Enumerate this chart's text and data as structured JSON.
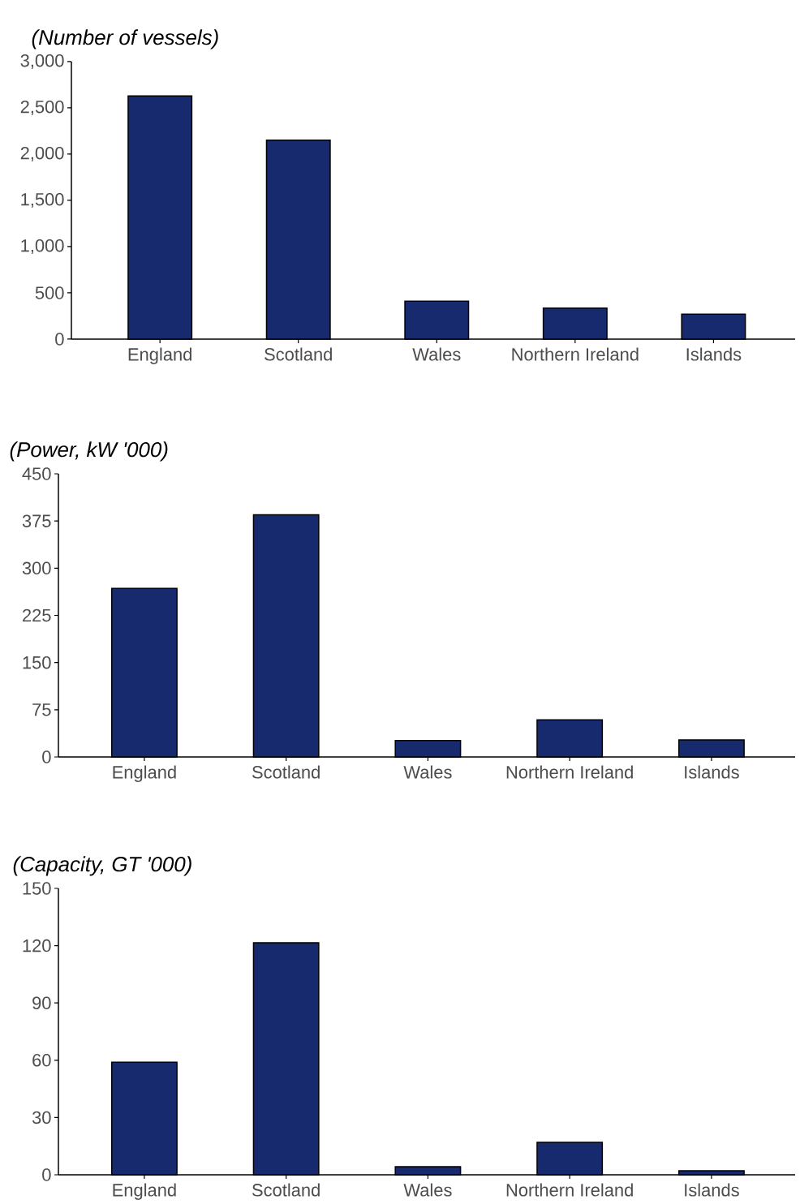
{
  "chart_data": [
    {
      "type": "bar",
      "ylabel": "(Number of vessels)",
      "categories": [
        "England",
        "Scotland",
        "Wales",
        "Northern Ireland",
        "Islands"
      ],
      "values": [
        2630,
        2150,
        410,
        335,
        270
      ],
      "color": "#172a6e",
      "ylim": [
        0,
        3000
      ],
      "yticks": [
        0,
        500,
        {
          "value": 1000,
          "label": "1,000"
        },
        {
          "value": 1500,
          "label": "1,500"
        },
        {
          "value": 2000,
          "label": "2,000"
        },
        {
          "value": 2500,
          "label": "2,500"
        },
        {
          "value": 3000,
          "label": "3,000"
        }
      ]
    },
    {
      "type": "bar",
      "ylabel": "(Power, kW '000)",
      "categories": [
        "England",
        "Scotland",
        "Wales",
        "Northern Ireland",
        "Islands"
      ],
      "values": [
        268,
        385,
        26,
        59,
        27
      ],
      "color": "#172a6e",
      "ylim": [
        0,
        450
      ],
      "yticks": [
        0,
        75,
        150,
        225,
        300,
        375,
        450
      ]
    },
    {
      "type": "bar",
      "ylabel": "(Capacity, GT '000)",
      "categories": [
        "England",
        "Scotland",
        "Wales",
        "Northern Ireland",
        "Islands"
      ],
      "values": [
        59,
        121.5,
        4.3,
        17,
        2.1
      ],
      "color": "#172a6e",
      "ylim": [
        0,
        150
      ],
      "yticks": [
        0,
        30,
        60,
        90,
        120,
        150
      ]
    }
  ]
}
